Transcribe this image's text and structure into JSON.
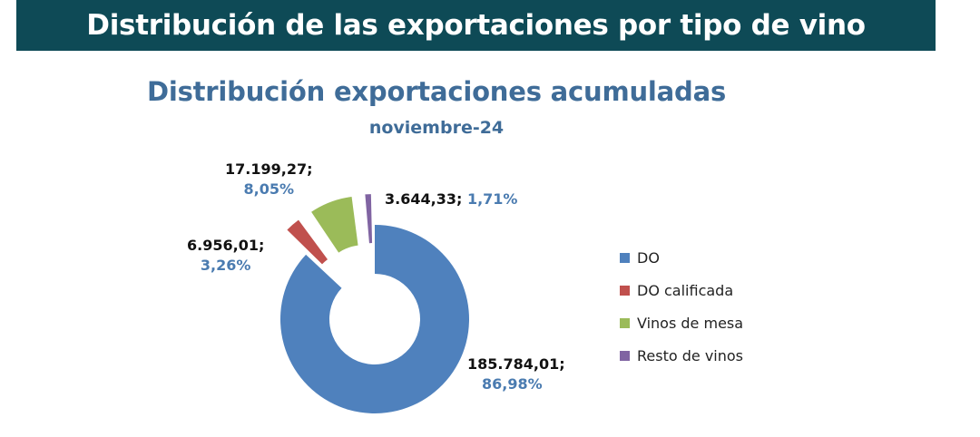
{
  "header": {
    "title": "Distribución de las exportaciones por tipo de vino"
  },
  "chart_data": {
    "type": "pie",
    "variant": "donut-exploded",
    "title": "Distribución exportaciones acumuladas",
    "subtitle": "noviembre-24",
    "legend_position": "right",
    "slices": [
      {
        "name": "DO",
        "value": 185784.01,
        "value_label": "185.784,01;",
        "percent_label": "86,98%",
        "color": "#4f81bd"
      },
      {
        "name": "DO calificada",
        "value": 6956.01,
        "value_label": "6.956,01;",
        "percent_label": "3,26%",
        "color": "#c0504d"
      },
      {
        "name": "Vinos de mesa",
        "value": 17199.27,
        "value_label": "17.199,27;",
        "percent_label": "8,05%",
        "color": "#9bbb59"
      },
      {
        "name": "Resto de vinos",
        "value": 3644.33,
        "value_label": "3.644,33;",
        "percent_label": "1,71%",
        "color": "#8064a2"
      }
    ]
  }
}
